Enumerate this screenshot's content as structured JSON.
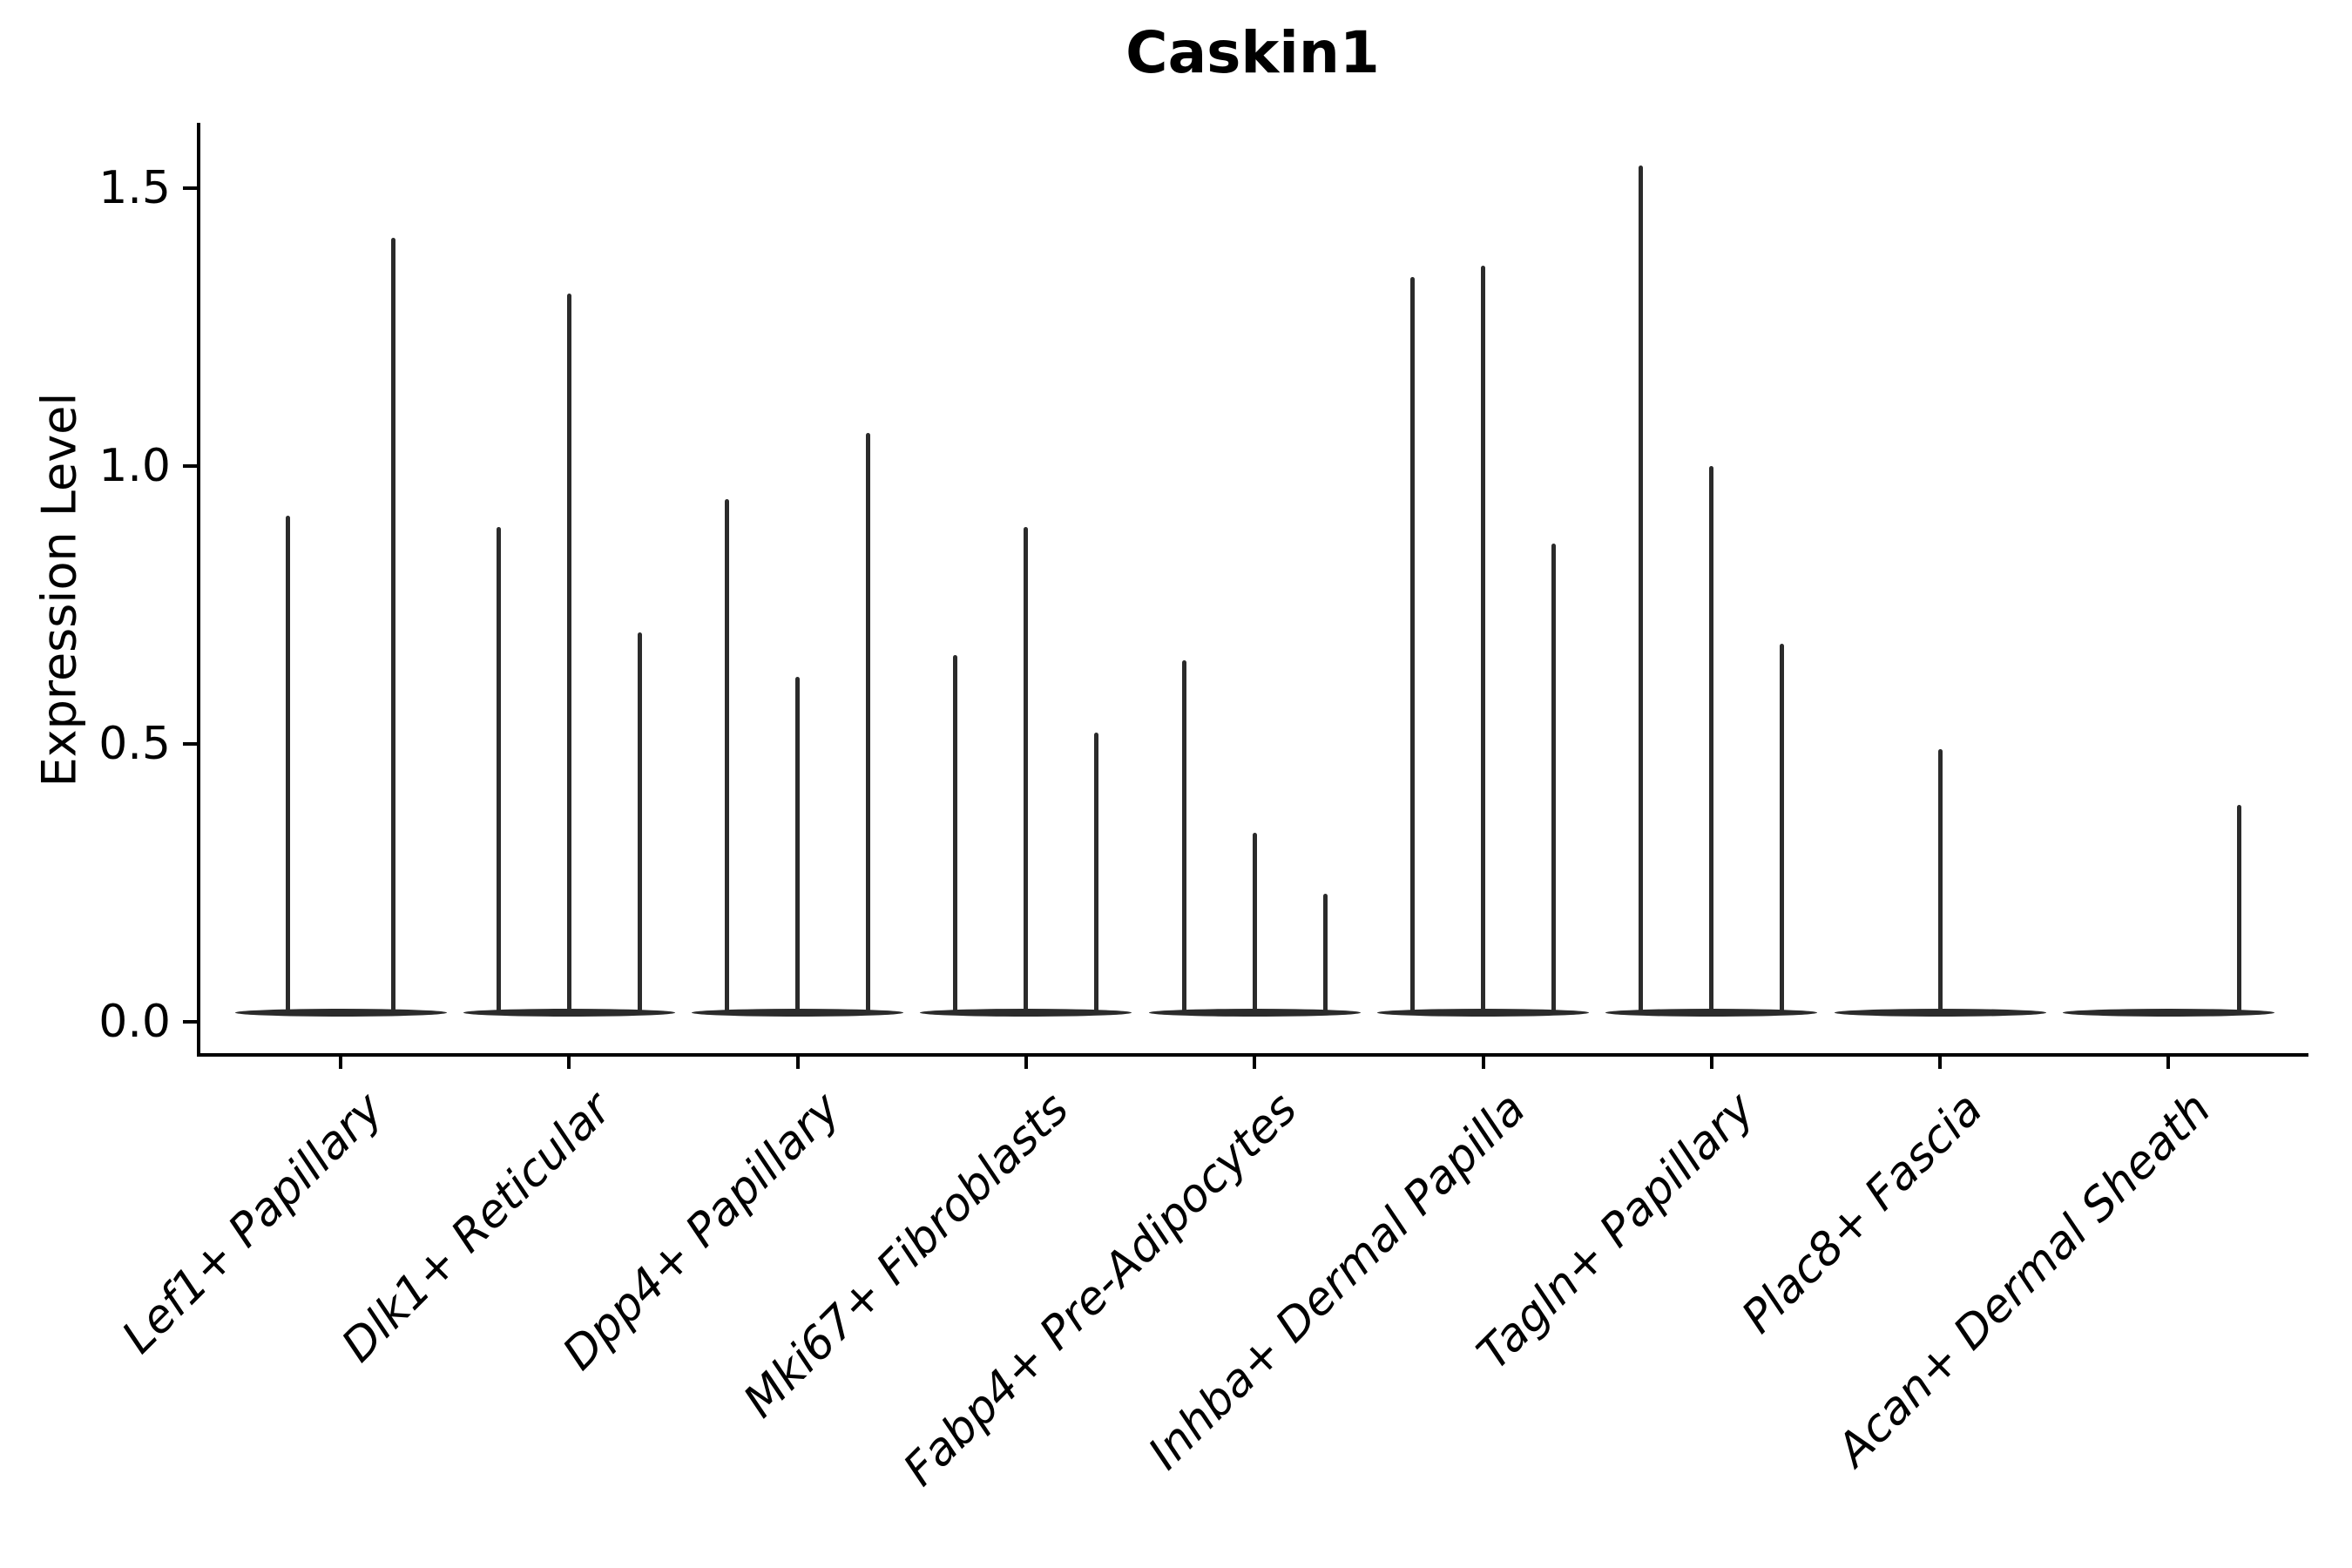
{
  "page": {
    "background_color": "#ffffff",
    "text_color": "#000000",
    "violin_color": "#2b2b2b"
  },
  "chart_data": {
    "type": "violin",
    "title": "Caskin1",
    "xlabel": "",
    "ylabel": "Expression Level",
    "ylim": [
      -0.06,
      1.62
    ],
    "yticks": [
      0.0,
      0.5,
      1.0,
      1.5
    ],
    "ytick_labels": [
      "0.0",
      "0.5",
      "1.0",
      "1.5"
    ],
    "grid": false,
    "legend": "none",
    "x_tick_rotation_deg": 45,
    "categories": [
      "Lef1+ Papillary",
      "Dlk1+ Reticular",
      "Dpp4+ Papillary",
      "Mki67+ Fibroblasts",
      "Fabp4+ Pre-Adipocytes",
      "Inhba+ Dermal Papilla",
      "Tagln+ Papillary",
      "Plac8+ Fascia",
      "Acan+ Dermal Sheath"
    ],
    "groups": [
      {
        "label": "Lef1+ Papillary",
        "violin_peaks": [
          0.91,
          1.41
        ]
      },
      {
        "label": "Dlk1+ Reticular",
        "violin_peaks": [
          0.89,
          1.31,
          0.7
        ]
      },
      {
        "label": "Dpp4+ Papillary",
        "violin_peaks": [
          0.94,
          0.62,
          1.06
        ]
      },
      {
        "label": "Mki67+ Fibroblasts",
        "violin_peaks": [
          0.66,
          0.89,
          0.52
        ]
      },
      {
        "label": "Fabp4+ Pre-Adipocytes",
        "violin_peaks": [
          0.65,
          0.34,
          0.23
        ]
      },
      {
        "label": "Inhba+ Dermal Papilla",
        "violin_peaks": [
          1.34,
          1.36,
          0.86
        ]
      },
      {
        "label": "Tagln+ Papillary",
        "violin_peaks": [
          1.54,
          1.0,
          0.68
        ]
      },
      {
        "label": "Plac8+ Fascia",
        "violin_peaks": [
          0,
          0.49,
          0
        ]
      },
      {
        "label": "Acan+ Dermal Sheath",
        "violin_peaks": [
          0,
          0,
          0.39
        ]
      }
    ]
  }
}
